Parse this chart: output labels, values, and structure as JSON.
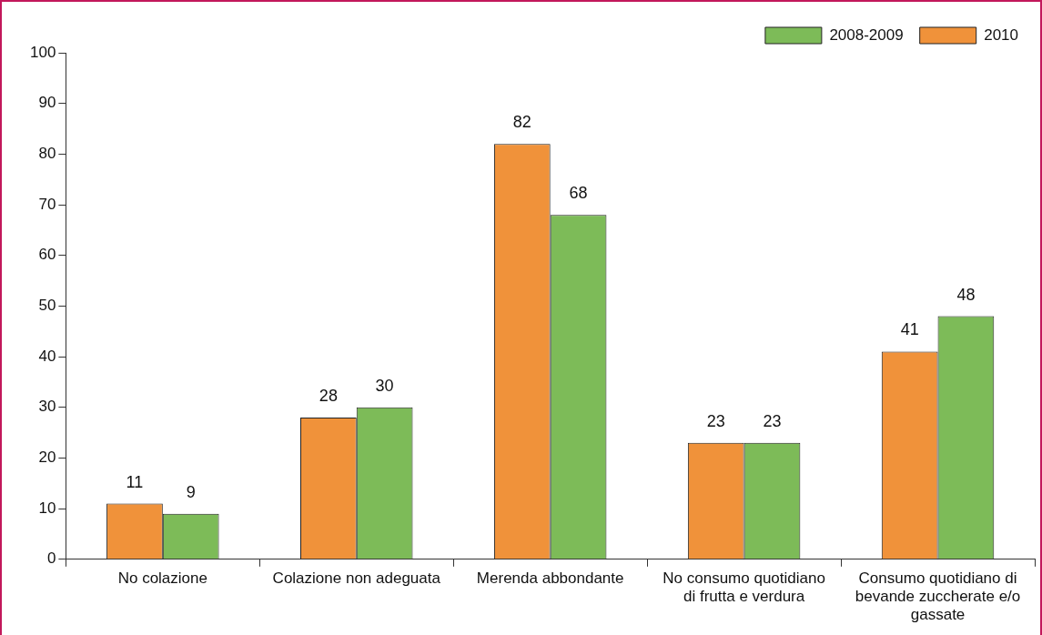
{
  "chart_data": {
    "type": "bar",
    "categories": [
      "No colazione",
      "Colazione non adeguata",
      "Merenda abbondante",
      "No consumo quotidiano di frutta e verdura",
      "Consumo quotidiano di bevande zuccherate e/o gassate"
    ],
    "series": [
      {
        "name": "2010",
        "color": "#f0923a",
        "values": [
          11,
          28,
          82,
          23,
          41
        ]
      },
      {
        "name": "2008-2009",
        "color": "#7dbb58",
        "values": [
          9,
          30,
          68,
          23,
          48
        ]
      }
    ],
    "ylim": [
      0,
      100
    ],
    "yticks": [
      0,
      10,
      20,
      30,
      40,
      50,
      60,
      70,
      80,
      90,
      100
    ],
    "grid": false,
    "legend": "top right",
    "data_labels": true
  }
}
